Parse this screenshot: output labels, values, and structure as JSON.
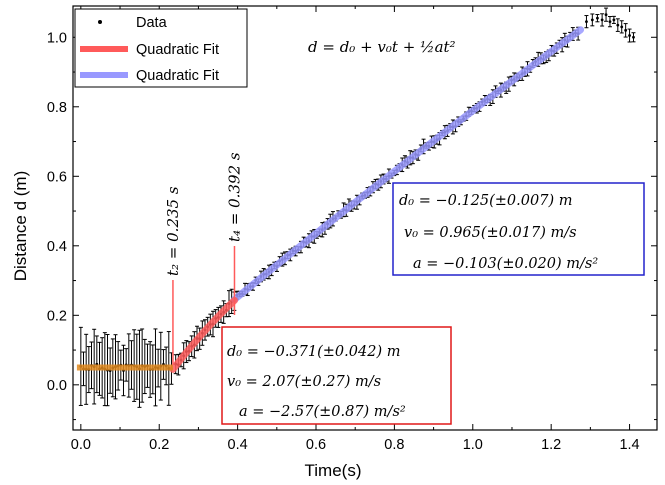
{
  "chart_data": {
    "type": "scatter",
    "xlabel": "Time(s)",
    "ylabel": "Distance d (m)",
    "xlim": [
      -0.02,
      1.47
    ],
    "ylim": [
      -0.13,
      1.09
    ],
    "x_ticks": [
      0.0,
      0.2,
      0.4,
      0.6,
      0.8,
      1.0,
      1.2,
      1.4
    ],
    "x_tick_labels": [
      "0.0",
      "0.2",
      "0.4",
      "0.6",
      "0.8",
      "1.0",
      "1.2",
      "1.4"
    ],
    "y_ticks": [
      0.0,
      0.2,
      0.4,
      0.6,
      0.8,
      1.0
    ],
    "y_tick_labels": [
      "0.0",
      "0.2",
      "0.4",
      "0.6",
      "0.8",
      "1.0"
    ],
    "legend": {
      "position": "top-left",
      "entries": [
        {
          "label": "Data",
          "marker": "dot",
          "color": "#000000"
        },
        {
          "label": "Quadratic Fit",
          "marker": "line",
          "color": "#ff5a5a"
        },
        {
          "label": "Quadratic Fit",
          "marker": "line",
          "color": "#9999ff"
        }
      ]
    },
    "equation": "d = d₀ + v₀t + ½at²",
    "markers": [
      {
        "x": 0.235,
        "label": "t₂ = 0.235 s"
      },
      {
        "x": 0.392,
        "label": "t₄ = 0.392 s"
      }
    ],
    "fit_boxes": [
      {
        "name": "fit-after-t4",
        "color": "#2222cc",
        "lines": [
          "d₀ = −0.125(±0.007) m",
          "v₀ = 0.965(±0.017) m/s",
          "a = −0.103(±0.020) m/s²"
        ]
      },
      {
        "name": "fit-t2-to-t4",
        "color": "#e01818",
        "lines": [
          "d₀ = −0.371(±0.042) m",
          "v₀ = 2.07(±0.27) m/s",
          "a = −2.57(±0.87) m/s²"
        ]
      }
    ],
    "series": [
      {
        "name": "Data",
        "color": "#000000",
        "note": "rest phase d ≈ 0.05 m with large error bars (~±0.11 m) until t ≈ 0.235 s; then rising to ≈1.06 m at t ≈ 1.34 s; drop to ≈1.00 m at t ≈ 1.41 s",
        "x": [
          0.0,
          0.05,
          0.1,
          0.15,
          0.2,
          0.235,
          0.3,
          0.392,
          0.5,
          0.6,
          0.7,
          0.8,
          0.9,
          1.0,
          1.1,
          1.2,
          1.28,
          1.34,
          1.38,
          1.41
        ],
        "y": [
          0.05,
          0.05,
          0.05,
          0.05,
          0.05,
          0.05,
          0.14,
          0.255,
          0.35,
          0.445,
          0.54,
          0.63,
          0.72,
          0.81,
          0.9,
          0.985,
          1.04,
          1.06,
          1.02,
          1.0
        ]
      },
      {
        "name": "Quadratic Fit",
        "color": "#ff5a5a",
        "range": [
          0.235,
          0.392
        ],
        "d0": -0.371,
        "v0": 2.07,
        "a": -2.57
      },
      {
        "name": "Quadratic Fit",
        "color": "#9999ff",
        "range": [
          0.392,
          1.275
        ],
        "d0": -0.125,
        "v0": 0.965,
        "a": -0.103
      }
    ],
    "rest_fit": {
      "color": "#e08a1e",
      "range": [
        -0.01,
        0.235
      ],
      "value": 0.05
    }
  }
}
